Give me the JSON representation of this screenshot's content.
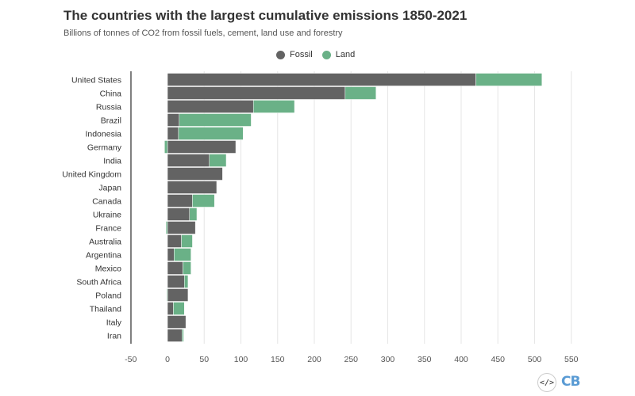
{
  "chart_data": {
    "type": "bar",
    "orientation": "horizontal",
    "stacked": true,
    "title": "The countries with the largest cumulative emissions 1850-2021",
    "subtitle": "Billions of tonnes of CO2 from fossil fuels, cement, land use and forestry",
    "categories": [
      "United States",
      "China",
      "Russia",
      "Brazil",
      "Indonesia",
      "Germany",
      "India",
      "United Kingdom",
      "Japan",
      "Canada",
      "Ukraine",
      "France",
      "Australia",
      "Argentina",
      "Mexico",
      "South Africa",
      "Poland",
      "Thailand",
      "Italy",
      "Iran"
    ],
    "series": [
      {
        "name": "Fossil",
        "color": "#636363",
        "values": [
          420,
          242,
          117,
          16,
          15,
          93,
          57,
          75,
          67,
          34,
          30,
          38,
          19,
          9,
          21,
          23,
          28,
          8,
          25,
          20
        ]
      },
      {
        "name": "Land",
        "color": "#6ab187",
        "values": [
          90,
          42,
          56,
          98,
          88,
          -4,
          23,
          0,
          0,
          30,
          10,
          -2,
          15,
          23,
          11,
          5,
          -1,
          15,
          0,
          2
        ]
      }
    ],
    "xlim": [
      -50,
      550
    ],
    "xticks": [
      -50,
      0,
      50,
      100,
      150,
      200,
      250,
      300,
      350,
      400,
      450,
      500,
      550
    ],
    "legend_position": "top-center",
    "grid": "vertical"
  },
  "footer": {
    "embed_label": "</>",
    "logo_text": "CB"
  }
}
